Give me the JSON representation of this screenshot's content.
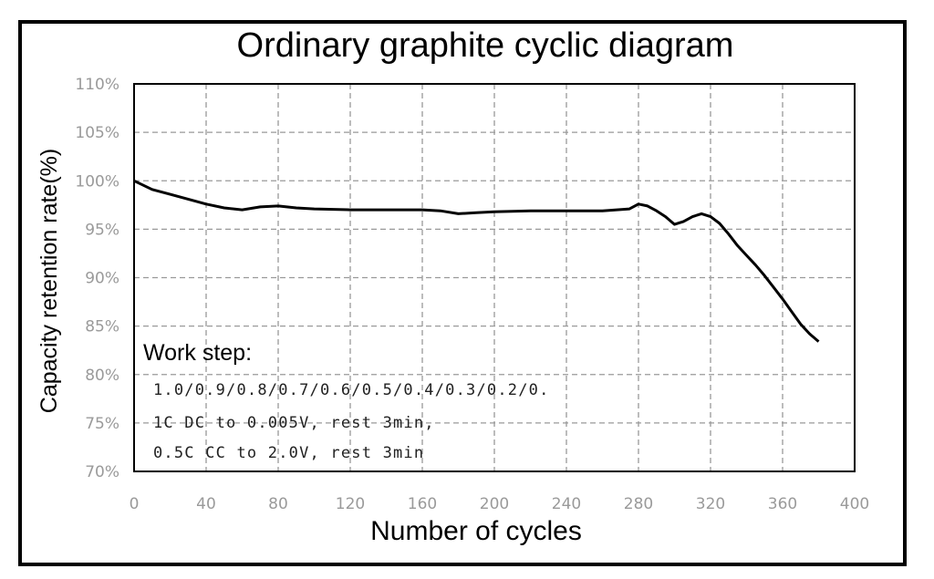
{
  "chart_data": {
    "type": "line",
    "title": "Ordinary graphite cyclic diagram",
    "xlabel": "Number of cycles",
    "ylabel": "Capacity retention rate(%)",
    "xlim": [
      0,
      400
    ],
    "ylim": [
      70,
      110
    ],
    "x_ticks": [
      "0",
      "40",
      "80",
      "120",
      "160",
      "200",
      "240",
      "280",
      "320",
      "360",
      "400"
    ],
    "y_ticks": [
      "70%",
      "75%",
      "80%",
      "85%",
      "90%",
      "95%",
      "100%",
      "105%",
      "110%"
    ],
    "grid": true,
    "series": [
      {
        "x": [
          0,
          10,
          20,
          30,
          40,
          50,
          60,
          70,
          80,
          90,
          100,
          120,
          140,
          160,
          170,
          180,
          190,
          200,
          220,
          240,
          260,
          275,
          280,
          285,
          290,
          295,
          300,
          305,
          310,
          315,
          320,
          325,
          330,
          335,
          340,
          345,
          350,
          355,
          360,
          365,
          370,
          375,
          380
        ],
        "y": [
          100,
          99.1,
          98.6,
          98.1,
          97.6,
          97.2,
          97.0,
          97.3,
          97.4,
          97.2,
          97.1,
          97.0,
          97.0,
          97.0,
          96.9,
          96.6,
          96.7,
          96.8,
          96.9,
          96.9,
          96.9,
          97.1,
          97.6,
          97.4,
          96.9,
          96.3,
          95.5,
          95.8,
          96.3,
          96.6,
          96.3,
          95.6,
          94.5,
          93.3,
          92.3,
          91.3,
          90.2,
          89.0,
          87.8,
          86.5,
          85.2,
          84.2,
          83.4
        ]
      }
    ],
    "annotation": {
      "title": "Work step:",
      "lines": [
        "1.0/0.9/0.8/0.7/0.6/0.5/0.4/0.3/0.2/0.",
        "1C DC to 0.005V, rest 3min,",
        "0.5C CC to 2.0V, rest 3min"
      ]
    }
  }
}
